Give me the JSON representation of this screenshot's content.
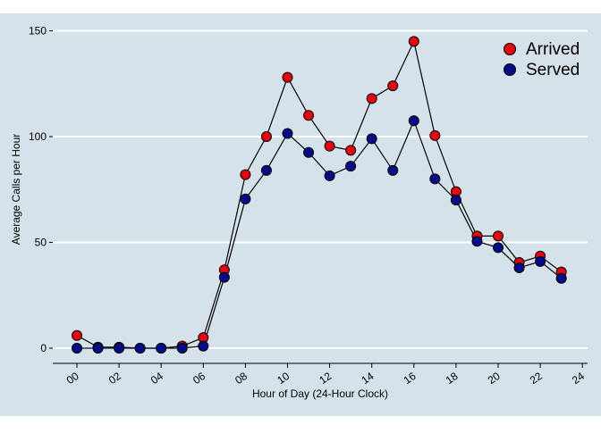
{
  "colors": {
    "plot_background": "#d5e2ea",
    "gridline": "#ffffff",
    "line": "#000000",
    "arrived_marker": "#e8040c",
    "served_marker": "#030d8a"
  },
  "chart_data": {
    "type": "line",
    "xlabel": "Hour of Day (24-Hour Clock)",
    "ylabel": "Average Calls per Hour",
    "xlim": [
      -1.2,
      24
    ],
    "ylim": [
      -7,
      157
    ],
    "x_ticks": [
      0,
      2,
      4,
      6,
      8,
      10,
      12,
      14,
      16,
      18,
      20,
      22,
      24
    ],
    "x_tick_labels": [
      "00",
      "02",
      "04",
      "06",
      "08",
      "10",
      "12",
      "14",
      "16",
      "18",
      "20",
      "22",
      "24"
    ],
    "y_ticks": [
      0,
      50,
      100,
      150
    ],
    "y_tick_labels": [
      "0",
      "50",
      "100",
      "150"
    ],
    "grid": "horizontal",
    "legend_position": "top-right",
    "x": [
      0,
      1,
      2,
      3,
      4,
      5,
      6,
      7,
      8,
      9,
      10,
      11,
      12,
      13,
      14,
      15,
      16,
      17,
      18,
      19,
      20,
      21,
      22,
      23
    ],
    "series": [
      {
        "name": "Arrived",
        "color": "#e8040c",
        "values": [
          6,
          0.5,
          0.5,
          0,
          0,
          1,
          5,
          37,
          82,
          100,
          128,
          110,
          95.5,
          93.5,
          118,
          124,
          145,
          100.5,
          74,
          53,
          53,
          40.5,
          43.5,
          36
        ]
      },
      {
        "name": "Served",
        "color": "#030d8a",
        "values": [
          0,
          0,
          0,
          0,
          0,
          0,
          1,
          33.5,
          70.5,
          84,
          101.5,
          92.5,
          81.5,
          86,
          99,
          84,
          107.5,
          80,
          70,
          50.5,
          47.5,
          38,
          41,
          33
        ]
      }
    ]
  }
}
